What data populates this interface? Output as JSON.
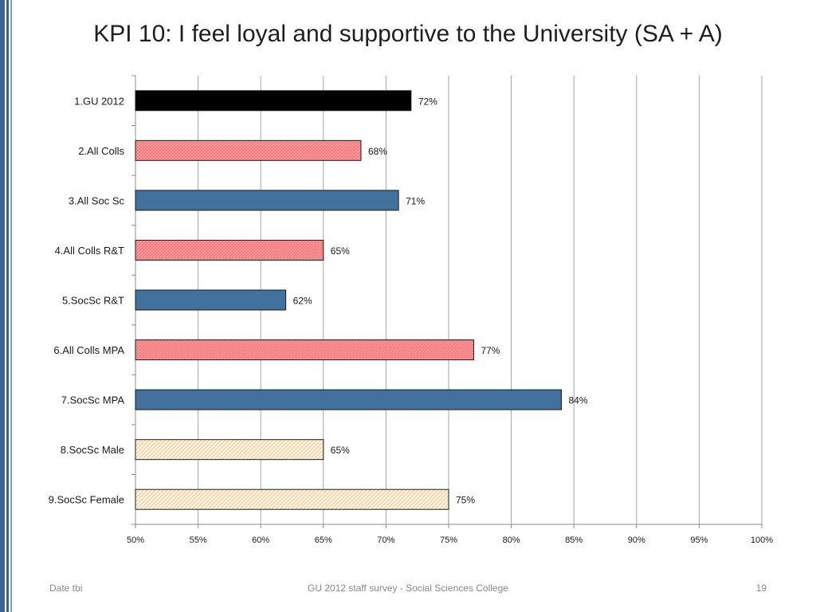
{
  "slide": {
    "title": "KPI 10: I feel loyal and supportive to the University (SA + A)"
  },
  "footer": {
    "left": "Date tbi",
    "center": "GU 2012 staff survey -  Social Sciences College",
    "page_number": "19"
  },
  "colors": {
    "black": "#000000",
    "salmon": "#f47f7f",
    "steel_blue": "#41719c",
    "cream": "#fbe6c8"
  },
  "chart_data": {
    "type": "bar",
    "orientation": "horizontal",
    "title": "KPI 10: I feel loyal and supportive to the University (SA + A)",
    "xlim": [
      50,
      100
    ],
    "x_ticks": [
      "50%",
      "55%",
      "60%",
      "65%",
      "70%",
      "75%",
      "80%",
      "85%",
      "90%",
      "95%",
      "100%"
    ],
    "x_tick_values": [
      50,
      55,
      60,
      65,
      70,
      75,
      80,
      85,
      90,
      95,
      100
    ],
    "grid": "vertical",
    "legend": "none",
    "categories": [
      "1.GU 2012",
      "2.All Colls",
      "3.All Soc Sc",
      "4.All Colls R&T",
      "5.SocSc R&T",
      "6.All Colls MPA",
      "7.SocSc MPA",
      "8.SocSc Male",
      "9.SocSc Female"
    ],
    "values": [
      72,
      68,
      71,
      65,
      62,
      77,
      84,
      65,
      75
    ],
    "value_labels": [
      "72%",
      "68%",
      "71%",
      "65%",
      "62%",
      "77%",
      "84%",
      "65%",
      "75%"
    ],
    "bar_styles": [
      "black",
      "salmon",
      "steel_blue",
      "salmon",
      "steel_blue",
      "salmon",
      "steel_blue",
      "cream",
      "cream"
    ]
  }
}
